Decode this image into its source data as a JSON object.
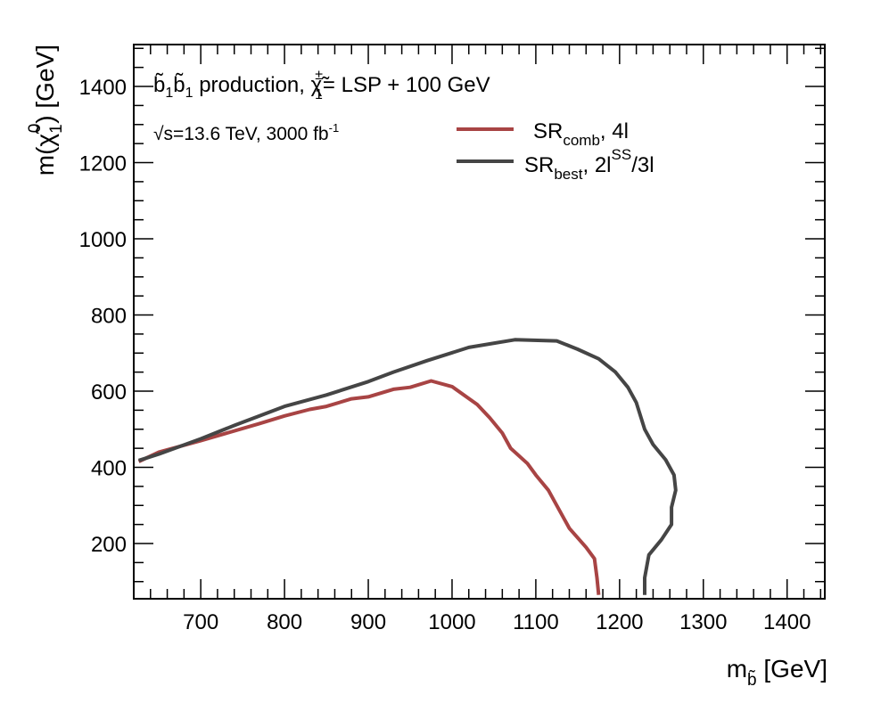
{
  "chart_data": {
    "type": "line",
    "title": "",
    "xlabel": {
      "main": "m",
      "sub": "b̃",
      "unit": " [GeV]"
    },
    "ylabel": {
      "main": "m(χ̃",
      "sub": "1",
      "sup": "0",
      "unit": ") [GeV]"
    },
    "xlim": [
      620,
      1445
    ],
    "ylim": [
      55,
      1510
    ],
    "xticks": [
      700,
      800,
      900,
      1000,
      1100,
      1200,
      1300,
      1400
    ],
    "yticks": [
      200,
      400,
      600,
      800,
      1000,
      1200,
      1400
    ],
    "grid": false,
    "annotations": {
      "line1": {
        "a": "b̃",
        "a_sub": "1",
        "b": "b̃",
        "b_sub": "1",
        "text": " production, ",
        "chi": "χ̃",
        "chi_sub": "1",
        "chi_sup": "±",
        "rest": "= LSP + 100 GeV"
      },
      "line2": {
        "text": "√s=13.6 TeV, 3000 fb",
        "sup": "-1"
      }
    },
    "legend_placement": "top-right",
    "series": [
      {
        "name": "SR_comb, 4l",
        "label": {
          "main": "SR",
          "sub": "comb",
          "rest": ", 4l"
        },
        "color": "#a84444",
        "points": [
          [
            626,
            415
          ],
          [
            650,
            440
          ],
          [
            700,
            470
          ],
          [
            770,
            515
          ],
          [
            800,
            535
          ],
          [
            830,
            552
          ],
          [
            850,
            560
          ],
          [
            880,
            580
          ],
          [
            900,
            585
          ],
          [
            930,
            605
          ],
          [
            950,
            610
          ],
          [
            975,
            627
          ],
          [
            1000,
            612
          ],
          [
            1030,
            565
          ],
          [
            1045,
            530
          ],
          [
            1060,
            490
          ],
          [
            1070,
            450
          ],
          [
            1090,
            410
          ],
          [
            1100,
            380
          ],
          [
            1115,
            340
          ],
          [
            1125,
            300
          ],
          [
            1140,
            240
          ],
          [
            1160,
            190
          ],
          [
            1170,
            160
          ],
          [
            1173,
            110
          ],
          [
            1175,
            65
          ]
        ]
      },
      {
        "name": "SR_best, 2l^SS/3l",
        "label": {
          "main": "SR",
          "sub": "best",
          "rest": ", 2l",
          "sup": "SS",
          "rest2": "/3l"
        },
        "color": "#454545",
        "points": [
          [
            626,
            418
          ],
          [
            650,
            435
          ],
          [
            700,
            475
          ],
          [
            740,
            510
          ],
          [
            800,
            560
          ],
          [
            850,
            590
          ],
          [
            900,
            625
          ],
          [
            930,
            650
          ],
          [
            970,
            680
          ],
          [
            1020,
            715
          ],
          [
            1075,
            735
          ],
          [
            1125,
            732
          ],
          [
            1150,
            710
          ],
          [
            1175,
            685
          ],
          [
            1195,
            650
          ],
          [
            1210,
            610
          ],
          [
            1220,
            570
          ],
          [
            1230,
            500
          ],
          [
            1240,
            460
          ],
          [
            1255,
            420
          ],
          [
            1265,
            380
          ],
          [
            1267,
            340
          ],
          [
            1262,
            295
          ],
          [
            1262,
            250
          ],
          [
            1250,
            210
          ],
          [
            1235,
            170
          ],
          [
            1230,
            110
          ],
          [
            1230,
            65
          ]
        ]
      }
    ]
  }
}
